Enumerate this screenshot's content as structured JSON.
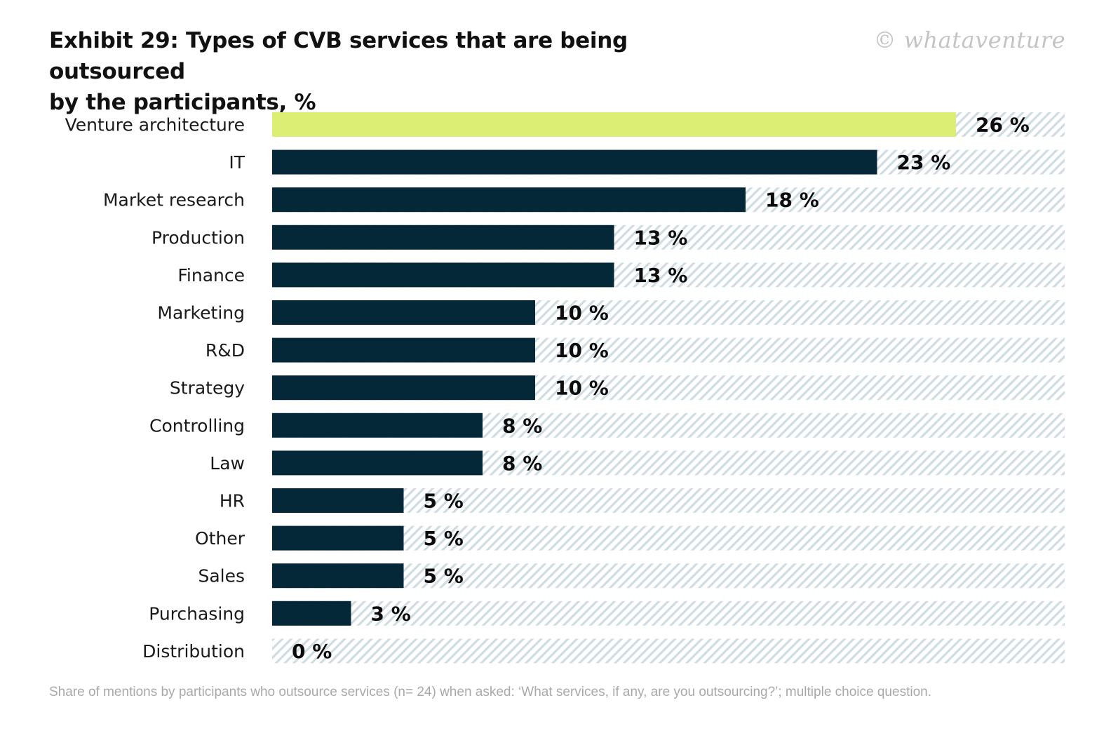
{
  "title_line1": "Exhibit 29: Types of CVB services that are being outsourced",
  "title_line2": "by the participants, %",
  "watermark": "© whataventure",
  "footnote": "Share of mentions by participants who outsource services (n= 24) when asked: ‘What services, if any, are you outsourcing?’; multiple choice question.",
  "colors": {
    "highlight": "#dcef74",
    "bar": "#042838",
    "stripe": "#cfdde3"
  },
  "chart_data": {
    "type": "bar",
    "orientation": "horizontal",
    "categories": [
      "Venture architecture",
      "IT",
      "Market research",
      "Production",
      "Finance",
      "Marketing",
      "R&D",
      "Strategy",
      "Controlling",
      "Law",
      "HR",
      "Other",
      "Sales",
      "Purchasing",
      "Distribution"
    ],
    "values": [
      26,
      23,
      18,
      13,
      13,
      10,
      10,
      10,
      8,
      8,
      5,
      5,
      5,
      3,
      0
    ],
    "labels": [
      "26 %",
      "23 %",
      "18 %",
      "13 %",
      "13 %",
      "10 %",
      "10 %",
      "10 %",
      "8 %",
      "8 %",
      "5 %",
      "5 %",
      "5 %",
      "3 %",
      "0 %"
    ],
    "highlight_index": 0,
    "xlim": [
      0,
      30
    ],
    "grid": false,
    "legend": "none"
  }
}
